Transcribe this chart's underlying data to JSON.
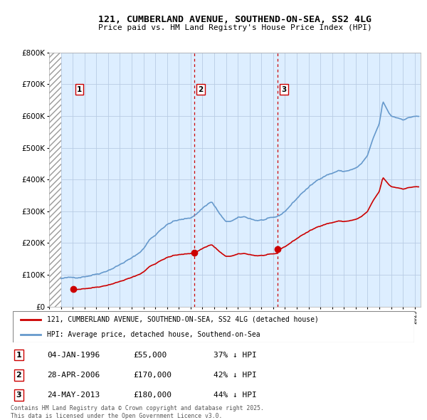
{
  "title": "121, CUMBERLAND AVENUE, SOUTHEND-ON-SEA, SS2 4LG",
  "subtitle": "Price paid vs. HM Land Registry's House Price Index (HPI)",
  "sales": [
    {
      "date_num": 1996.04,
      "price": 55000,
      "label": "1"
    },
    {
      "date_num": 2006.33,
      "price": 170000,
      "label": "2"
    },
    {
      "date_num": 2013.4,
      "price": 180000,
      "label": "3"
    }
  ],
  "sale_color": "#cc0000",
  "hpi_color": "#6699cc",
  "hpi_fill_color": "#ddeeff",
  "legend_entries": [
    "121, CUMBERLAND AVENUE, SOUTHEND-ON-SEA, SS2 4LG (detached house)",
    "HPI: Average price, detached house, Southend-on-Sea"
  ],
  "table_rows": [
    {
      "num": "1",
      "date": "04-JAN-1996",
      "price": "£55,000",
      "pct": "37% ↓ HPI"
    },
    {
      "num": "2",
      "date": "28-APR-2006",
      "price": "£170,000",
      "pct": "42% ↓ HPI"
    },
    {
      "num": "3",
      "date": "24-MAY-2013",
      "price": "£180,000",
      "pct": "44% ↓ HPI"
    }
  ],
  "footer": "Contains HM Land Registry data © Crown copyright and database right 2025.\nThis data is licensed under the Open Government Licence v3.0.",
  "ylim": [
    0,
    800000
  ],
  "xlim_start": 1994.0,
  "xlim_end": 2025.5,
  "hatch_end": 1995.0
}
